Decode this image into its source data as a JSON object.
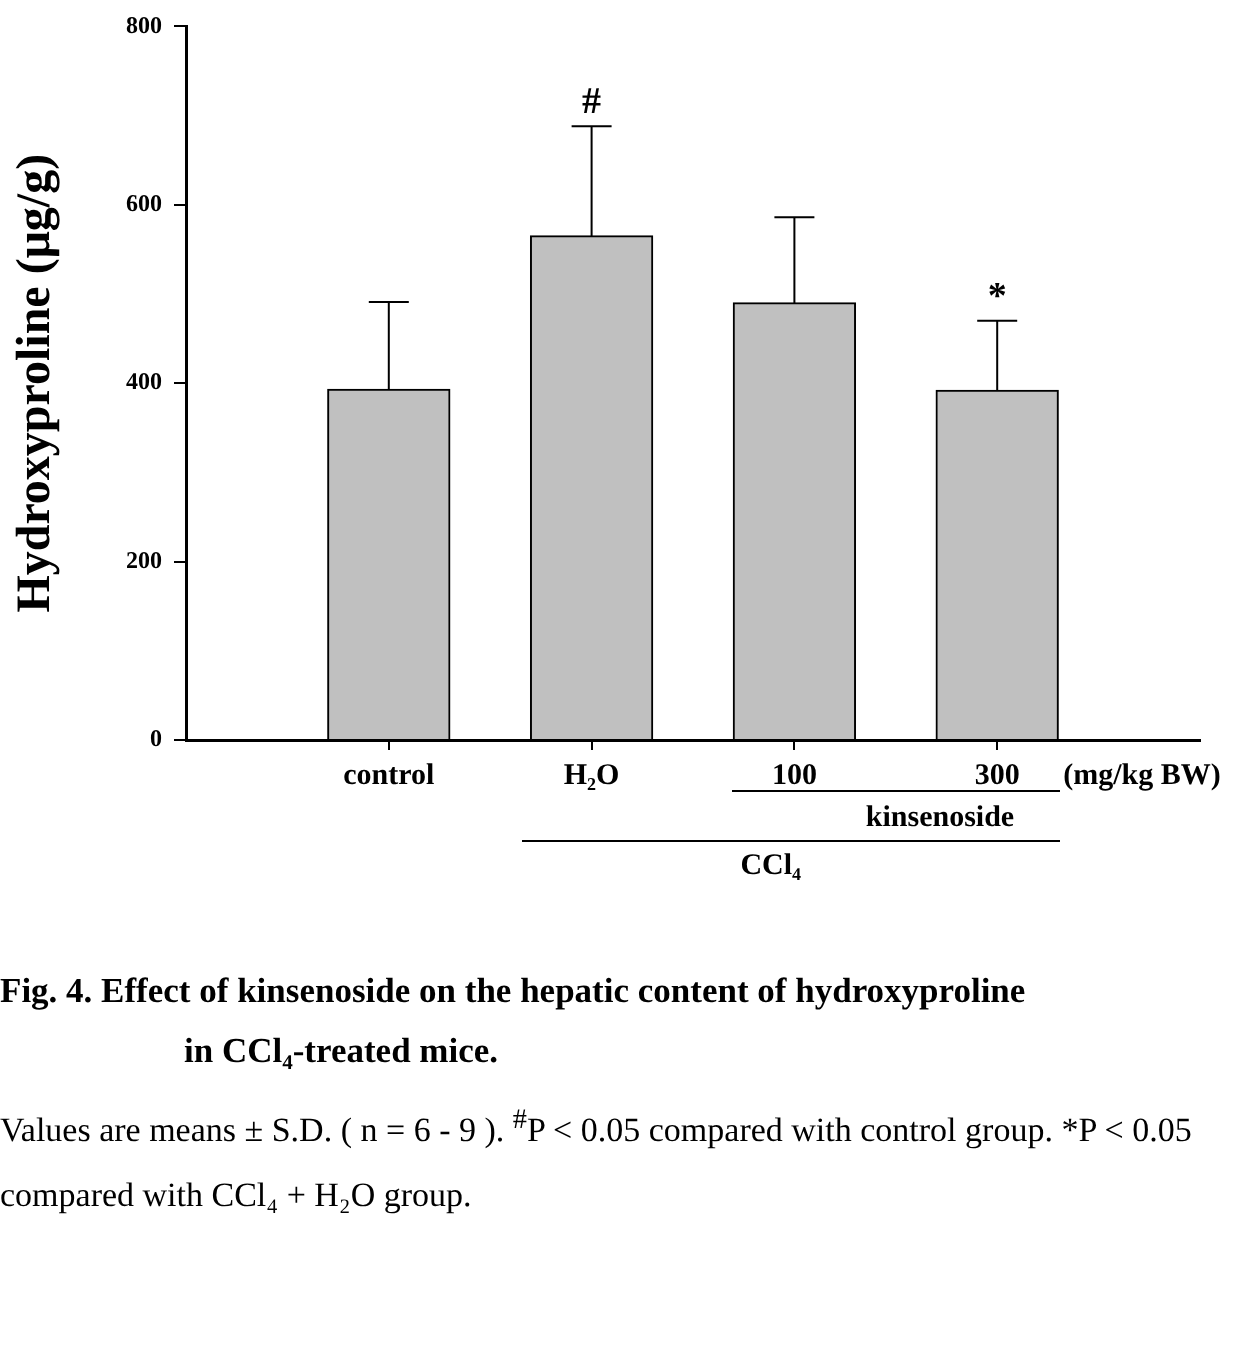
{
  "chart_data": {
    "type": "bar",
    "ylabel": "Hydroxyproline (μg/g)",
    "categories": [
      "control",
      "H₂O",
      "100",
      "300"
    ],
    "values": [
      393,
      565,
      490,
      392
    ],
    "errors": [
      98,
      123,
      96,
      78
    ],
    "color": "#c0c0c0",
    "ylim": [
      0,
      800
    ],
    "yticks": [
      0,
      200,
      400,
      600,
      800
    ],
    "grid": false,
    "legend": false,
    "annotations": [
      "#",
      "*",
      "(mg/kg BW)",
      "kinsenoside",
      "CCl₄",
      "Fig. 4. Effect of kinsenoside on the hepatic content of hydroxyproline in CCl₄-treated mice.",
      "Values are means ± S.D. ( n = 6 - 9 ). $^{#}$P < 0.05 compared with control group. *P < 0.05 compared with CCl₄ + H₂O group."
    ]
  }
}
